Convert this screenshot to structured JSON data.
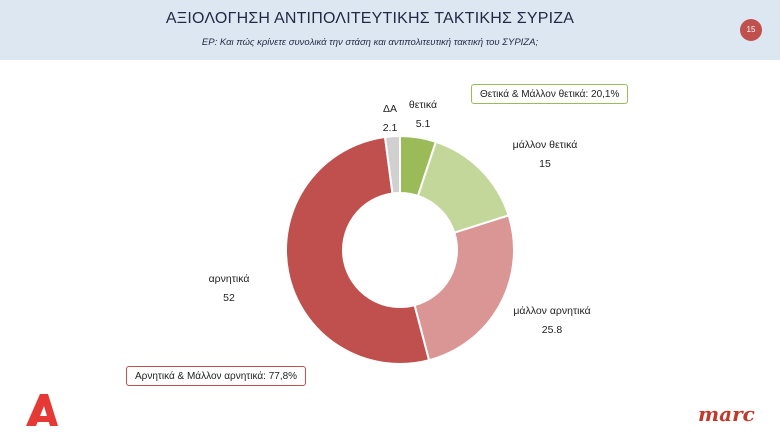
{
  "header": {
    "title": "ΑΞΙΟΛΟΓΗΣΗ ΑΝΤΙΠΟΛΙΤΕΥΤΙΚΗΣ ΤΑΚΤΙΚΗΣ ΣΥΡΙΖΑ",
    "question": "ΕΡ: Και πώς κρίνετε συνολικά την στάση και αντιπολιτευτική τακτική του ΣΥΡΙΖΑ;",
    "page_number": "15"
  },
  "callouts": {
    "positive": "Θετικά & Μάλλον θετικά: 20,1%",
    "negative": "Αρνητικά & Μάλλον αρνητικά: 77,8%"
  },
  "logos": {
    "left": "A",
    "right": "marc"
  },
  "colors": {
    "header_bg": "#dde7f1",
    "positive_border": "#9bbb59",
    "negative_border": "#c0504d",
    "badge": "#c0504d"
  },
  "chart_data": {
    "type": "pie",
    "subtype": "donut",
    "start_angle_deg": 0,
    "direction": "clockwise",
    "slices": [
      {
        "label": "θετικά",
        "value": 5.1,
        "display": "5.1",
        "color": "#9bbb59"
      },
      {
        "label": "μάλλον θετικά",
        "value": 15,
        "display": "15",
        "color": "#c4d79b"
      },
      {
        "label": "μάλλον αρνητικά",
        "value": 25.8,
        "display": "25.8",
        "color": "#da9694"
      },
      {
        "label": "αρνητικά",
        "value": 52,
        "display": "52",
        "color": "#c0504d"
      },
      {
        "label": "ΔΑ",
        "value": 2.1,
        "display": "2.1",
        "color": "#d0d0d0"
      }
    ]
  }
}
